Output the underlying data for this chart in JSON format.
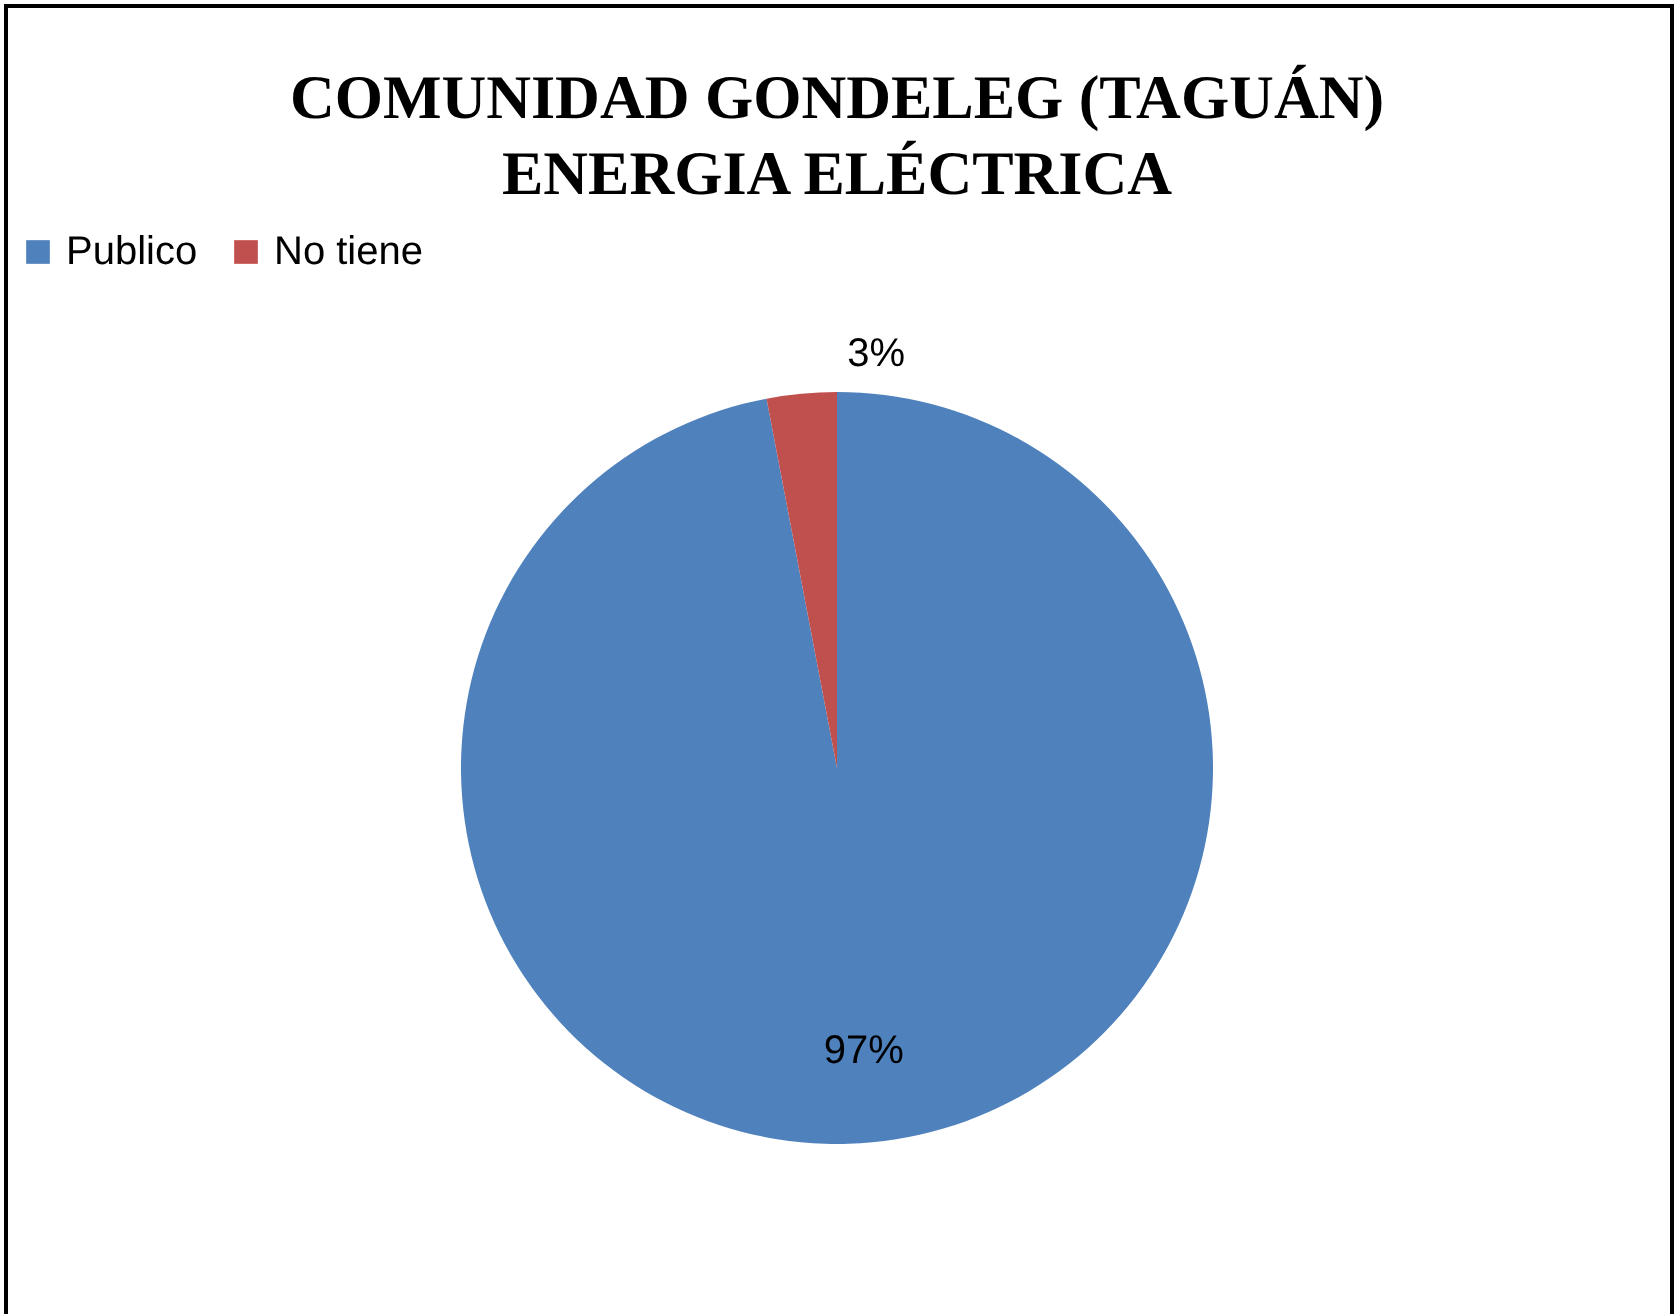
{
  "chart_data": {
    "type": "pie",
    "title": "COMUNIDAD GONDELEG (TAGUÁN)\nENERGIA ELÉCTRICA",
    "categories": [
      "Publico",
      "No tiene"
    ],
    "values": [
      97,
      3
    ],
    "colors": [
      "#4f81bd",
      "#c0504d"
    ],
    "value_labels": [
      "97%",
      "3%"
    ],
    "legend": "top"
  }
}
